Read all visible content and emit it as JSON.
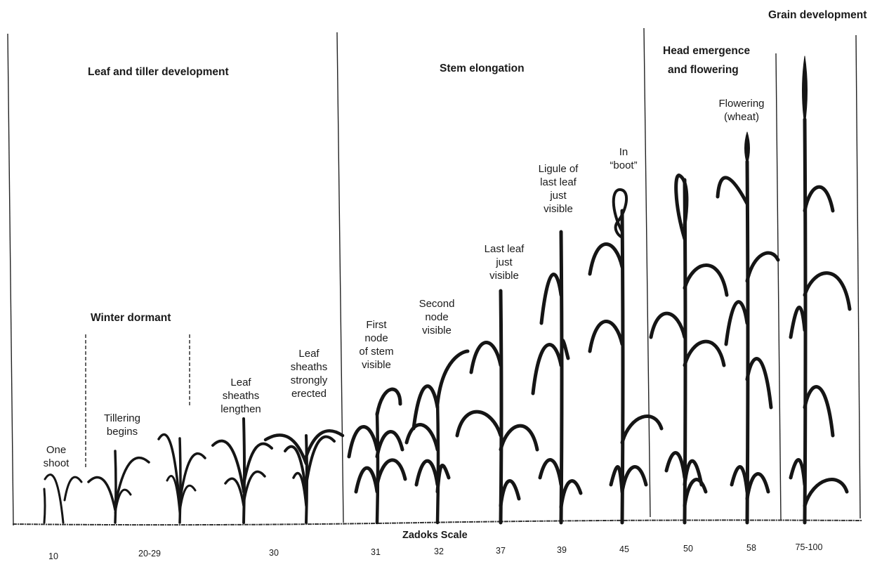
{
  "headers": {
    "grain": "Grain development",
    "leaf_tiller": "Leaf and tiller development",
    "stem": "Stem elongation",
    "head_1": "Head emergence",
    "head_2": "and flowering",
    "winter": "Winter dormant",
    "scale": "Zadoks Scale"
  },
  "labels": {
    "one_shoot": [
      "One",
      "shoot"
    ],
    "tillering": [
      "Tillering",
      "begins"
    ],
    "sheaths_lengthen": [
      "Leaf",
      "sheaths",
      "lengthen"
    ],
    "sheaths_erected": [
      "Leaf",
      "sheaths",
      "strongly",
      "erected"
    ],
    "first_node": [
      "First",
      "node",
      "of stem",
      "visible"
    ],
    "second_node": [
      "Second",
      "node",
      "visible"
    ],
    "last_leaf": [
      "Last leaf",
      "just",
      "visible"
    ],
    "ligule": [
      "Ligule of",
      "last leaf",
      "just",
      "visible"
    ],
    "boot": [
      "In",
      "“boot”"
    ],
    "flowering": [
      "Flowering",
      "(wheat)"
    ]
  },
  "scale_values": [
    "10",
    "20-29",
    "30",
    "31",
    "32",
    "37",
    "39",
    "45",
    "50",
    "58",
    "75-100"
  ]
}
